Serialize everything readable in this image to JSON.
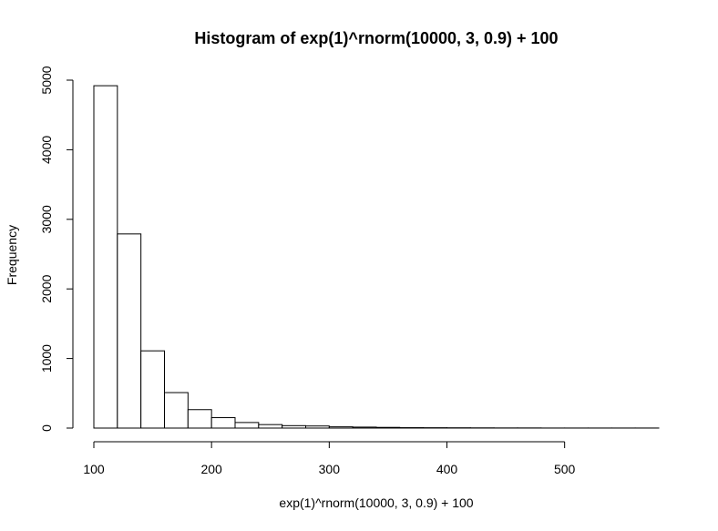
{
  "chart_data": {
    "type": "bar",
    "title": "Histogram of exp(1)^rnorm(10000, 3, 0.9) + 100",
    "xlabel": "exp(1)^rnorm(10000, 3, 0.9) + 100",
    "ylabel": "Frequency",
    "bin_edges": [
      100,
      120,
      140,
      160,
      180,
      200,
      220,
      240,
      260,
      280,
      300,
      320,
      340,
      360,
      380,
      400,
      420,
      440,
      460,
      480,
      500,
      520,
      540,
      560,
      580
    ],
    "values": [
      4920,
      2790,
      1110,
      510,
      265,
      150,
      80,
      50,
      35,
      30,
      18,
      14,
      10,
      6,
      5,
      4,
      3,
      2,
      2,
      1,
      1,
      1,
      1,
      1
    ],
    "xticks": [
      100,
      200,
      300,
      400,
      500
    ],
    "yticks": [
      0,
      1000,
      2000,
      3000,
      4000,
      5000
    ],
    "xlim": [
      100,
      580
    ],
    "ylim": [
      0,
      5000
    ],
    "grid": false,
    "bar_fill": "#ffffff",
    "bar_stroke": "#000000"
  }
}
